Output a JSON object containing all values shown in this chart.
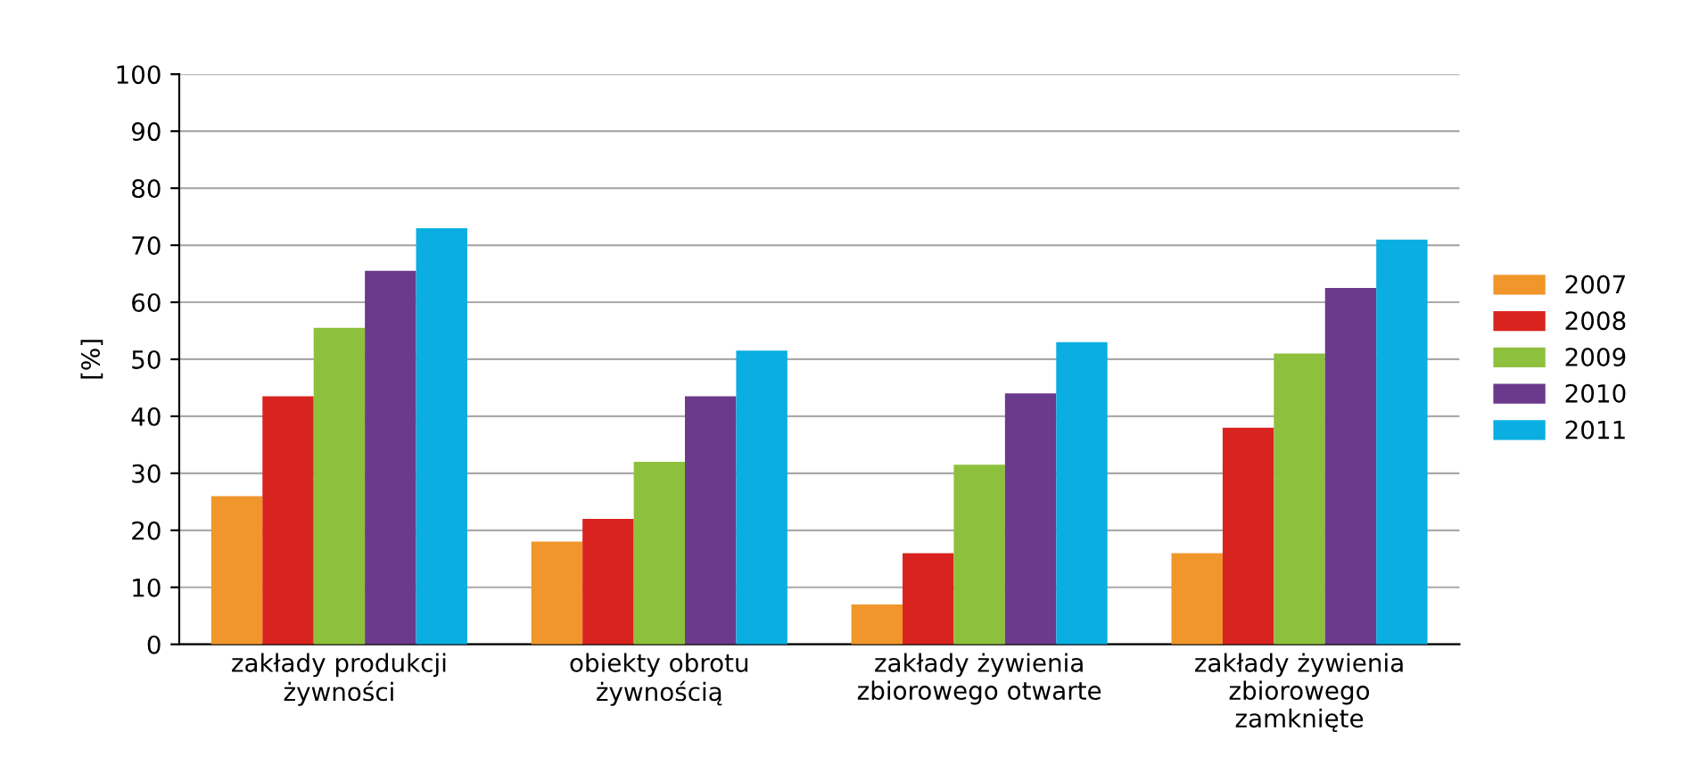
{
  "chart_data": {
    "type": "bar",
    "ylabel": "[%]",
    "categories": [
      "zakłady produkcji\nżywności",
      "obiekty obrotu\nżywnością",
      "zakłady żywienia\nzbiorowego otwarte",
      "zakłady żywienia\nzbiorowego\nzamknięte"
    ],
    "series": [
      {
        "name": "2007",
        "color": "#f0962a",
        "values": [
          26,
          18,
          7,
          16
        ]
      },
      {
        "name": "2008",
        "color": "#d9231f",
        "values": [
          43.5,
          22,
          16,
          38
        ]
      },
      {
        "name": "2009",
        "color": "#8dc03c",
        "values": [
          55.5,
          32,
          31.5,
          51
        ]
      },
      {
        "name": "2010",
        "color": "#6b3a8c",
        "values": [
          65.5,
          43.5,
          44,
          62.5
        ]
      },
      {
        "name": "2011",
        "color": "#0aaee0",
        "values": [
          73,
          51.5,
          53,
          71
        ]
      }
    ],
    "ylim": [
      0,
      100
    ],
    "yticks": [
      0,
      10,
      20,
      30,
      40,
      50,
      60,
      70,
      80,
      90,
      100
    ],
    "grid": "y",
    "legend": "right"
  }
}
